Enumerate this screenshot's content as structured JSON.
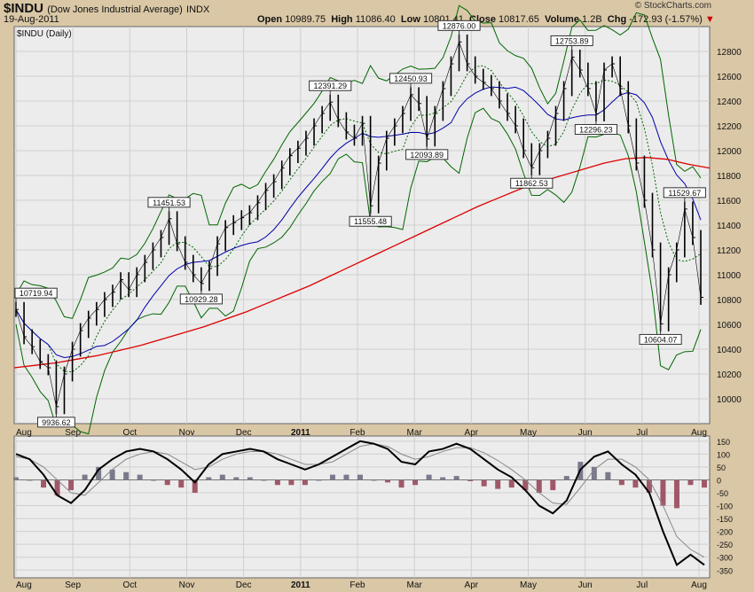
{
  "header": {
    "symbol": "$INDU",
    "name": "(Dow Jones Industrial Average)",
    "exchange": "INDX",
    "date": "19-Aug-2011",
    "brand": "© StockCharts.com",
    "open_label": "Open",
    "open": "10989.75",
    "high_label": "High",
    "high": "11086.40",
    "low_label": "Low",
    "low": "10801.41",
    "close_label": "Close",
    "close": "10817.65",
    "volume_label": "Volume",
    "volume": "1.2B",
    "chg_label": "Chg",
    "chg": "-172.93 (-1.57%)",
    "chg_arrow": "▼"
  },
  "panel_label": "$INDU (Daily)",
  "colors": {
    "price": "#000000",
    "ma20": "#006600",
    "ma50": "#0000aa",
    "ma200": "#dd0000",
    "band": "#006600",
    "macd": "#000000",
    "signal": "#888888",
    "hist_pos": "#7a7a8c",
    "hist_neg": "#a05868"
  },
  "chart_data": [
    {
      "type": "ohlc",
      "title": "$INDU (Daily)",
      "x_labels": [
        "Aug",
        "Sep",
        "Oct",
        "Nov",
        "Dec",
        "2011",
        "Feb",
        "Mar",
        "Apr",
        "May",
        "Jun",
        "Jul",
        "Aug"
      ],
      "ylim": [
        9800,
        13000
      ],
      "yticks": [
        10000,
        10200,
        10400,
        10600,
        10800,
        11000,
        11200,
        11400,
        11600,
        11800,
        12000,
        12200,
        12400,
        12600,
        12800
      ],
      "close_series": [
        10719.94,
        10500,
        10420,
        10300,
        10250,
        9936.62,
        10200,
        10400,
        10550,
        10650,
        10720,
        10800,
        10860,
        10960,
        10880,
        11000,
        11100,
        11200,
        11300,
        11451.53,
        11250,
        11100,
        11000,
        10929.28,
        11050,
        11250,
        11380,
        11420,
        11460,
        11500,
        11580,
        11680,
        11750,
        11860,
        11960,
        12020,
        12100,
        12200,
        12300,
        12391.29,
        12250,
        12150,
        12100,
        12220,
        11555.48,
        11900,
        12100,
        12200,
        12300,
        12450.93,
        12380,
        12093.89,
        12300,
        12500,
        12700,
        12876.0,
        12700,
        12600,
        12550,
        12500,
        12400,
        12300,
        12200,
        12000,
        11862.53,
        12000,
        12100,
        12300,
        12500,
        12753.89,
        12650,
        12500,
        12296.23,
        12650,
        12700,
        12500,
        12200,
        11900,
        11600,
        11200,
        10604.07,
        11000,
        11200,
        11529.67,
        11300,
        10817.65
      ],
      "annotations": [
        {
          "text": "10719.94",
          "value": 10719.94
        },
        {
          "text": "9936.62",
          "value": 9936.62
        },
        {
          "text": "11451.53",
          "value": 11451.53
        },
        {
          "text": "10929.28",
          "value": 10929.28
        },
        {
          "text": "12391.29",
          "value": 12391.29
        },
        {
          "text": "11555.48",
          "value": 11555.48
        },
        {
          "text": "12450.93",
          "value": 12450.93
        },
        {
          "text": "12093.89",
          "value": 12093.89
        },
        {
          "text": "12876.00",
          "value": 12876.0
        },
        {
          "text": "11862.53",
          "value": 11862.53
        },
        {
          "text": "12753.89",
          "value": 12753.89
        },
        {
          "text": "12296.23",
          "value": 12296.23
        },
        {
          "text": "11529.67",
          "value": 11529.67
        },
        {
          "text": "10604.07",
          "value": 10604.07
        }
      ],
      "ma200": [
        10250,
        10270,
        10290,
        10320,
        10350,
        10390,
        10430,
        10480,
        10530,
        10580,
        10640,
        10700,
        10770,
        10840,
        10910,
        10990,
        11070,
        11150,
        11230,
        11310,
        11390,
        11470,
        11550,
        11620,
        11690,
        11750,
        11800,
        11850,
        11900,
        11935,
        11945,
        11930,
        11890,
        11860
      ]
    },
    {
      "type": "macd",
      "ylim": [
        -380,
        170
      ],
      "yticks": [
        150,
        100,
        50,
        0,
        -50,
        -100,
        -150,
        -200,
        -250,
        -300,
        -350
      ],
      "macd": [
        100,
        80,
        20,
        -60,
        -90,
        -40,
        40,
        80,
        110,
        120,
        110,
        80,
        40,
        -10,
        60,
        100,
        110,
        120,
        110,
        80,
        60,
        40,
        60,
        90,
        120,
        150,
        140,
        120,
        70,
        60,
        110,
        120,
        140,
        120,
        80,
        40,
        10,
        -40,
        -100,
        -130,
        -80,
        40,
        90,
        110,
        60,
        20,
        -50,
        -200,
        -330,
        -290,
        -330
      ],
      "signal": [
        90,
        80,
        50,
        0,
        -50,
        -60,
        -10,
        40,
        80,
        100,
        110,
        100,
        70,
        40,
        50,
        80,
        100,
        110,
        110,
        100,
        80,
        60,
        60,
        70,
        100,
        130,
        140,
        130,
        100,
        80,
        90,
        110,
        125,
        125,
        105,
        75,
        40,
        0,
        -50,
        -90,
        -95,
        -30,
        40,
        80,
        80,
        50,
        0,
        -100,
        -220,
        -270,
        -300
      ]
    }
  ]
}
